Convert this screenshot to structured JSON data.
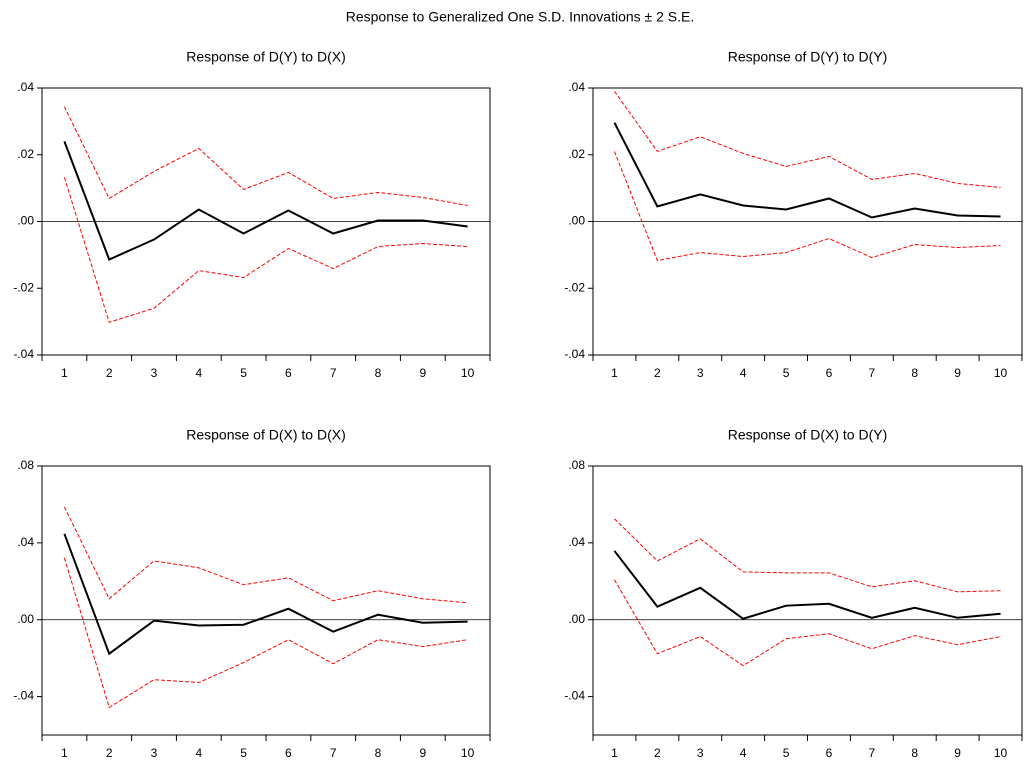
{
  "title": "Response to Generalized One S.D. Innovations ± 2 S.E.",
  "chart_data": [
    {
      "type": "line",
      "title": "Response of D(Y) to D(X)",
      "categories": [
        "1",
        "2",
        "3",
        "4",
        "5",
        "6",
        "7",
        "8",
        "9",
        "10"
      ],
      "ylim": [
        -0.04,
        0.04
      ],
      "yticks": [
        {
          "value": -0.04,
          "label": "-.04"
        },
        {
          "value": -0.02,
          "label": "-.02"
        },
        {
          "value": 0,
          "label": ".00"
        },
        {
          "value": 0.02,
          "label": ".02"
        },
        {
          "value": 0.04,
          "label": ".04"
        }
      ],
      "zero_line": true,
      "series": [
        {
          "color": "#000000",
          "dashed": false,
          "values": [
            0.024,
            -0.0114,
            -0.0054,
            0.0036,
            -0.0036,
            0.0033,
            -0.0036,
            0.0003,
            0.0003,
            -0.0015
          ]
        },
        {
          "color": "#ff0000",
          "dashed": true,
          "values": [
            0.0344,
            0.0069,
            0.015,
            0.0219,
            0.0096,
            0.0147,
            0.0069,
            0.0087,
            0.0072,
            0.0048
          ]
        },
        {
          "color": "#ff0000",
          "dashed": true,
          "values": [
            0.0132,
            -0.0302,
            -0.026,
            -0.0147,
            -0.0168,
            -0.0081,
            -0.0141,
            -0.0075,
            -0.0066,
            -0.0075
          ]
        }
      ]
    },
    {
      "type": "line",
      "title": "Response of D(Y) to D(Y)",
      "categories": [
        "1",
        "2",
        "3",
        "4",
        "5",
        "6",
        "7",
        "8",
        "9",
        "10"
      ],
      "ylim": [
        -0.04,
        0.04
      ],
      "yticks": [
        {
          "value": -0.04,
          "label": "-.04"
        },
        {
          "value": -0.02,
          "label": "-.02"
        },
        {
          "value": 0,
          "label": ".00"
        },
        {
          "value": 0.02,
          "label": ".02"
        },
        {
          "value": 0.04,
          "label": ".04"
        }
      ],
      "zero_line": true,
      "series": [
        {
          "color": "#000000",
          "dashed": false,
          "values": [
            0.0296,
            0.0045,
            0.0081,
            0.0048,
            0.0036,
            0.0069,
            0.0012,
            0.0039,
            0.0018,
            0.0015
          ]
        },
        {
          "color": "#ff0000",
          "dashed": true,
          "values": [
            0.039,
            0.021,
            0.0254,
            0.0204,
            0.0165,
            0.0195,
            0.0126,
            0.0144,
            0.0114,
            0.0102
          ]
        },
        {
          "color": "#ff0000",
          "dashed": true,
          "values": [
            0.021,
            -0.0117,
            -0.0093,
            -0.0105,
            -0.0093,
            -0.0051,
            -0.0108,
            -0.0069,
            -0.0078,
            -0.0072
          ]
        }
      ]
    },
    {
      "type": "line",
      "title": "Response of D(X) to D(X)",
      "categories": [
        "1",
        "2",
        "3",
        "4",
        "5",
        "6",
        "7",
        "8",
        "9",
        "10"
      ],
      "ylim": [
        -0.06,
        0.08
      ],
      "yticks": [
        {
          "value": -0.04,
          "label": "-.04"
        },
        {
          "value": 0,
          "label": ".00"
        },
        {
          "value": 0.04,
          "label": ".04"
        },
        {
          "value": 0.08,
          "label": ".08"
        }
      ],
      "zero_line": true,
      "series": [
        {
          "color": "#000000",
          "dashed": false,
          "values": [
            0.0447,
            -0.0177,
            -0.0005,
            -0.003,
            -0.0026,
            0.0057,
            -0.0062,
            0.0026,
            -0.0016,
            -0.001
          ]
        },
        {
          "color": "#ff0000",
          "dashed": true,
          "values": [
            0.0587,
            0.0109,
            0.0306,
            0.027,
            0.0182,
            0.0218,
            0.0099,
            0.0151,
            0.0109,
            0.0088
          ]
        },
        {
          "color": "#ff0000",
          "dashed": true,
          "values": [
            0.0322,
            -0.0457,
            -0.0312,
            -0.0327,
            -0.0223,
            -0.0104,
            -0.0229,
            -0.0104,
            -0.014,
            -0.0104
          ]
        }
      ]
    },
    {
      "type": "line",
      "title": "Response of D(X) to D(Y)",
      "categories": [
        "1",
        "2",
        "3",
        "4",
        "5",
        "6",
        "7",
        "8",
        "9",
        "10"
      ],
      "ylim": [
        -0.06,
        0.08
      ],
      "yticks": [
        {
          "value": -0.04,
          "label": "-.04"
        },
        {
          "value": 0,
          "label": ".00"
        },
        {
          "value": 0.04,
          "label": ".04"
        },
        {
          "value": 0.08,
          "label": ".08"
        }
      ],
      "zero_line": true,
      "series": [
        {
          "color": "#000000",
          "dashed": false,
          "values": [
            0.0358,
            0.0068,
            0.0166,
            0.0005,
            0.0073,
            0.0083,
            0.001,
            0.0062,
            0.001,
            0.0031
          ]
        },
        {
          "color": "#ff0000",
          "dashed": true,
          "values": [
            0.0525,
            0.0306,
            0.0421,
            0.0249,
            0.0244,
            0.0244,
            0.0171,
            0.0203,
            0.0145,
            0.0151
          ]
        },
        {
          "color": "#ff0000",
          "dashed": true,
          "values": [
            0.0208,
            -0.0177,
            -0.0088,
            -0.0239,
            -0.0099,
            -0.0073,
            -0.0151,
            -0.0083,
            -0.013,
            -0.0088
          ]
        }
      ]
    }
  ]
}
